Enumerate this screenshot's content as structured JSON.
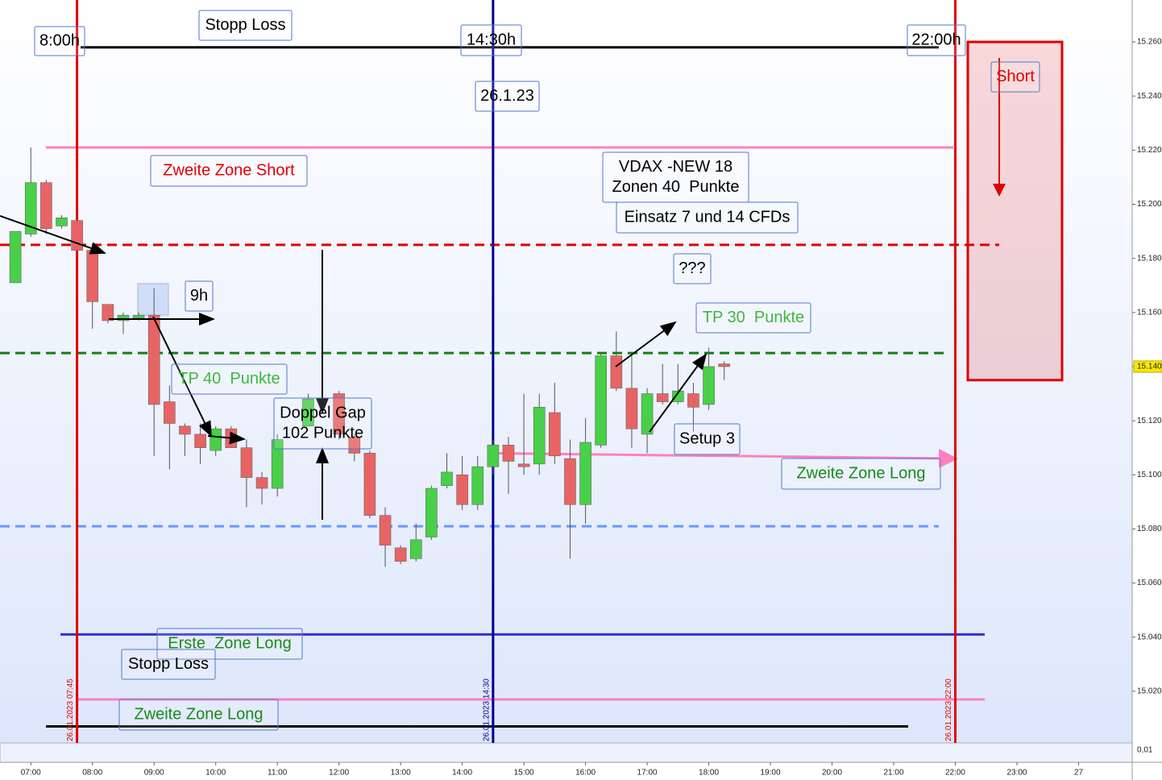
{
  "chart_data": {
    "type": "candlestick",
    "x": [
      6.75,
      7,
      7.25,
      7.5,
      7.75,
      8,
      8.25,
      8.5,
      8.75,
      9,
      9.25,
      9.5,
      9.75,
      10,
      10.25,
      10.5,
      10.75,
      11,
      11.5,
      12,
      12.25,
      12.5,
      12.75,
      13,
      13.25,
      13.5,
      13.75,
      14,
      14.25,
      14.5,
      14.75,
      15,
      15.25,
      15.5,
      15.75,
      16,
      16.25,
      16.5,
      16.75,
      17,
      17.25,
      17.5,
      17.75,
      18,
      18.25
    ],
    "open": [
      15171,
      15189,
      15208,
      15192,
      15194,
      15183,
      15163,
      15157,
      15158,
      15159,
      15127,
      15118,
      15115,
      15109,
      15117,
      15110,
      15099,
      15095,
      15118,
      15130,
      15114,
      15108,
      15085,
      15073,
      15069,
      15077,
      15096,
      15100,
      15089,
      15103,
      15111,
      15104,
      15104,
      15123,
      15106,
      15089,
      15111,
      15144,
      15132,
      15115,
      15130,
      15127,
      15130,
      15126,
      15141
    ],
    "high": [
      15190,
      15221,
      15209,
      15196,
      15194,
      15184,
      15163,
      15160,
      15160,
      15169,
      15133,
      15119,
      15119,
      15118,
      15118,
      15113,
      15101,
      15115,
      15130,
      15131,
      15115,
      15109,
      15088,
      15074,
      15082,
      15096,
      15108,
      15107,
      15107,
      15113,
      15114,
      15130,
      15130,
      15134,
      15113,
      15121,
      15145,
      15153,
      15144,
      15132,
      15141,
      15141,
      15134,
      15147,
      15142
    ],
    "low": [
      15171,
      15188,
      15189,
      15191,
      15183,
      15154,
      15156,
      15152,
      15157,
      15107,
      15102,
      15107,
      15104,
      15107,
      15110,
      15088,
      15089,
      15092,
      15118,
      15113,
      15105,
      15084,
      15066,
      15067,
      15068,
      15076,
      15095,
      15087,
      15087,
      15100,
      15093,
      15100,
      15100,
      15104,
      15069,
      15082,
      15110,
      15131,
      15110,
      15108,
      15126,
      15126,
      15116,
      15124,
      15135
    ],
    "close": [
      15190,
      15208,
      15191,
      15195,
      15183,
      15164,
      15157,
      15159,
      15159,
      15126,
      15119,
      15115,
      15110,
      15117,
      15110,
      15099,
      15095,
      15113,
      15128,
      15115,
      15108,
      15085,
      15074,
      15068,
      15076,
      15095,
      15101,
      15089,
      15103,
      15111,
      15105,
      15103,
      15125,
      15107,
      15089,
      15112,
      15144,
      15132,
      15117,
      15130,
      15127,
      15131,
      15125,
      15140,
      15140
    ],
    "up_color": "#48d048",
    "down_color": "#e86464",
    "xlim": [
      6.5,
      24.87
    ],
    "xticks": [
      {
        "value": 7,
        "label": "07:00"
      },
      {
        "value": 8,
        "label": "08:00"
      },
      {
        "value": 9,
        "label": "09:00"
      },
      {
        "value": 10,
        "label": "10:00"
      },
      {
        "value": 11,
        "label": "11:00"
      },
      {
        "value": 12,
        "label": "12:00"
      },
      {
        "value": 13,
        "label": "13:00"
      },
      {
        "value": 14,
        "label": "14:00"
      },
      {
        "value": 15,
        "label": "15:00"
      },
      {
        "value": 16,
        "label": "16:00"
      },
      {
        "value": 17,
        "label": "17:00"
      },
      {
        "value": 18,
        "label": "18:00"
      },
      {
        "value": 19,
        "label": "19:00"
      },
      {
        "value": 20,
        "label": "20:00"
      },
      {
        "value": 21,
        "label": "21:00"
      },
      {
        "value": 22,
        "label": "22:00"
      },
      {
        "value": 23,
        "label": "23:00"
      },
      {
        "value": 24,
        "label": "27"
      }
    ],
    "ylim": [
      15001.5,
      15275.5
    ],
    "yticks": [
      {
        "value": 15260,
        "label": "15.260"
      },
      {
        "value": 15240,
        "label": "15.240"
      },
      {
        "value": 15220,
        "label": "15.220"
      },
      {
        "value": 15200,
        "label": "15.200"
      },
      {
        "value": 15180,
        "label": "15.180"
      },
      {
        "value": 15160,
        "label": "15.160"
      },
      {
        "value": 15140,
        "label": "15.140"
      },
      {
        "value": 15120,
        "label": "15.120"
      },
      {
        "value": 15100,
        "label": "15.100"
      },
      {
        "value": 15080,
        "label": "15.080"
      },
      {
        "value": 15060,
        "label": "15.060"
      },
      {
        "value": 15040,
        "label": "15.040"
      },
      {
        "value": 15020,
        "label": "15.020"
      }
    ],
    "levels": [
      {
        "value": 15258,
        "color": "#000000",
        "style": "solid"
      },
      {
        "value": 15221,
        "color": "#ff80c0",
        "style": "solid"
      },
      {
        "value": 15185,
        "color": "#e00000",
        "style": "dashed"
      },
      {
        "value": 15145,
        "color": "#108010",
        "style": "dashed"
      },
      {
        "value": 15081,
        "color": "#6699ff",
        "style": "dashed"
      },
      {
        "value": 15041,
        "color": "#3030d0",
        "style": "solid"
      },
      {
        "value": 15017,
        "color": "#ff80c0",
        "style": "solid"
      },
      {
        "value": 15007,
        "color": "#000000",
        "style": "solid"
      }
    ],
    "trend_lines": [
      {
        "start": 15108,
        "end": 15106,
        "color": "#ff80c0"
      }
    ],
    "zones": [
      {
        "high": 15260,
        "low": 15135,
        "color": "#e00000"
      }
    ],
    "vlines": [
      {
        "x": 7.75,
        "color": "#e00000",
        "label": "26.01.2023 07:45"
      },
      {
        "x": 14.5,
        "color": "#000090",
        "label": "26.01.2023 14:30"
      },
      {
        "x": 22,
        "color": "#e00000",
        "label": "26.01.2023 22:00"
      }
    ],
    "annotations": [
      {
        "lines": [
          "8:00h"
        ],
        "color": "#000000"
      },
      {
        "lines": [
          "Stopp Loss"
        ],
        "color": "#000000"
      },
      {
        "lines": [
          "14:30h"
        ],
        "color": "#000000"
      },
      {
        "lines": [
          "22:00h"
        ],
        "color": "#000000"
      },
      {
        "lines": [
          "26.1.23"
        ],
        "color": "#000000"
      },
      {
        "lines": [
          "Short"
        ],
        "color": "#e00000"
      },
      {
        "lines": [
          "Zweite Zone Short"
        ],
        "color": "#e00000"
      },
      {
        "lines": [
          "VDAX -NEW 18",
          "Zonen 40  Punkte"
        ],
        "color": "#000000"
      },
      {
        "lines": [
          "Einsatz 7 und 14 CFDs"
        ],
        "color": "#000000"
      },
      {
        "lines": [
          "???"
        ],
        "color": "#000000"
      },
      {
        "lines": [
          "9h"
        ],
        "color": "#000000"
      },
      {
        "lines": [
          "TP 30  Punkte"
        ],
        "color": "#3cb83c"
      },
      {
        "lines": [
          "TP 40  Punkte"
        ],
        "color": "#3cb83c"
      },
      {
        "lines": [
          "Doppel Gap",
          "102 Punkte"
        ],
        "color": "#000000"
      },
      {
        "lines": [
          "Setup 3"
        ],
        "color": "#000000"
      },
      {
        "lines": [
          "Zweite Zone Long"
        ],
        "color": "#1a8a1a"
      },
      {
        "lines": [
          "Erste  Zone Long"
        ],
        "color": "#1a8a1a"
      },
      {
        "lines": [
          "Stopp Loss"
        ],
        "color": "#000000"
      },
      {
        "lines": [
          "Zweite Zone Long"
        ],
        "color": "#1a8a1a"
      }
    ],
    "lower_pane_label": "0,01"
  }
}
